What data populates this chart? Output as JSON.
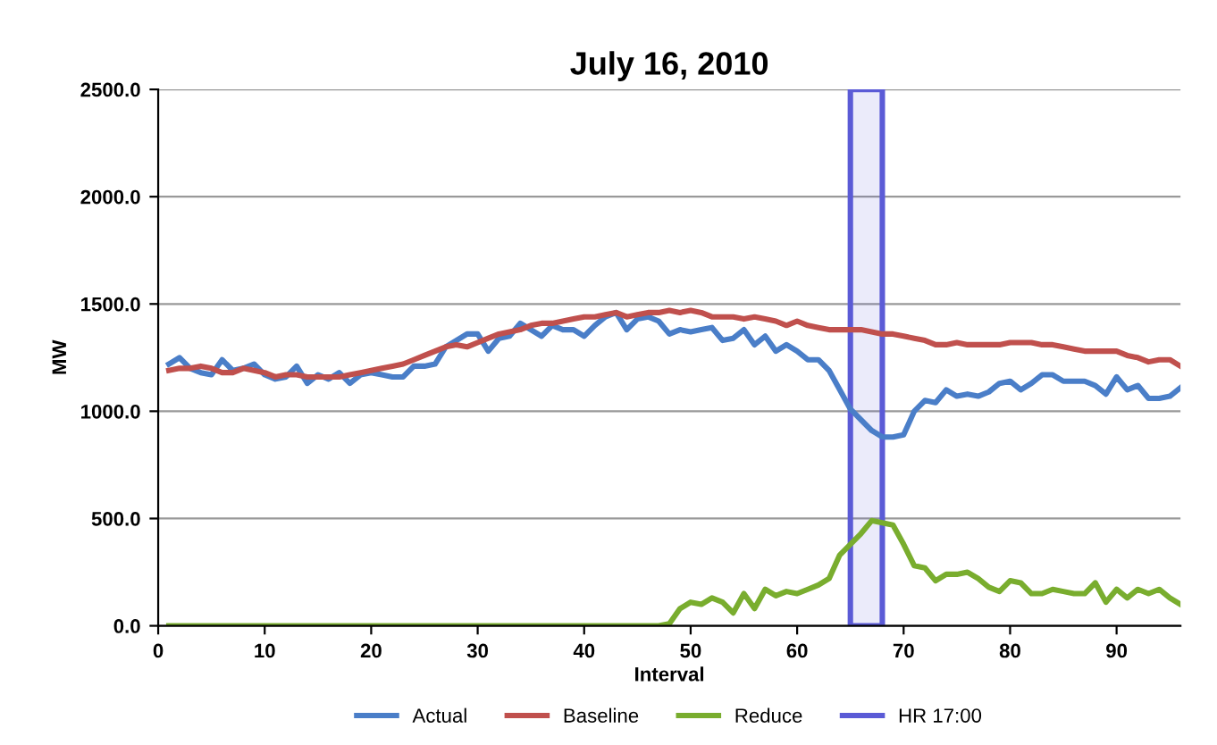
{
  "chart_data": {
    "type": "line",
    "title": "July 16, 2010",
    "xlabel": "Interval",
    "ylabel": "MW",
    "x": [
      1,
      2,
      3,
      4,
      5,
      6,
      7,
      8,
      9,
      10,
      11,
      12,
      13,
      14,
      15,
      16,
      17,
      18,
      19,
      20,
      21,
      22,
      23,
      24,
      25,
      26,
      27,
      28,
      29,
      30,
      31,
      32,
      33,
      34,
      35,
      36,
      37,
      38,
      39,
      40,
      41,
      42,
      43,
      44,
      45,
      46,
      47,
      48,
      49,
      50,
      51,
      52,
      53,
      54,
      55,
      56,
      57,
      58,
      59,
      60,
      61,
      62,
      63,
      64,
      65,
      66,
      67,
      68,
      69,
      70,
      71,
      72,
      73,
      74,
      75,
      76,
      77,
      78,
      79,
      80,
      81,
      82,
      83,
      84,
      85,
      86,
      87,
      88,
      89,
      90,
      91,
      92,
      93,
      94,
      95,
      96
    ],
    "series": [
      {
        "name": "Actual",
        "color": "#4a7ec8",
        "values": [
          1220,
          1250,
          1200,
          1180,
          1170,
          1240,
          1190,
          1200,
          1220,
          1170,
          1150,
          1160,
          1210,
          1130,
          1170,
          1150,
          1180,
          1130,
          1170,
          1180,
          1170,
          1160,
          1160,
          1210,
          1210,
          1220,
          1300,
          1330,
          1360,
          1360,
          1280,
          1340,
          1350,
          1410,
          1380,
          1350,
          1400,
          1380,
          1380,
          1350,
          1400,
          1440,
          1460,
          1380,
          1430,
          1440,
          1420,
          1360,
          1380,
          1370,
          1380,
          1390,
          1330,
          1340,
          1380,
          1310,
          1350,
          1280,
          1310,
          1280,
          1240,
          1240,
          1190,
          1100,
          1010,
          960,
          910,
          880,
          880,
          890,
          1000,
          1050,
          1040,
          1100,
          1070,
          1080,
          1070,
          1090,
          1130,
          1140,
          1100,
          1130,
          1170,
          1170,
          1140,
          1140,
          1140,
          1120,
          1080,
          1160,
          1100,
          1120,
          1060,
          1060,
          1070,
          1110
        ]
      },
      {
        "name": "Baseline",
        "color": "#c0504d",
        "values": [
          1190,
          1200,
          1200,
          1210,
          1200,
          1180,
          1180,
          1200,
          1190,
          1180,
          1160,
          1170,
          1170,
          1160,
          1160,
          1160,
          1160,
          1170,
          1180,
          1190,
          1200,
          1210,
          1220,
          1240,
          1260,
          1280,
          1300,
          1310,
          1300,
          1320,
          1340,
          1360,
          1370,
          1380,
          1400,
          1410,
          1410,
          1420,
          1430,
          1440,
          1440,
          1450,
          1460,
          1440,
          1450,
          1460,
          1460,
          1470,
          1460,
          1470,
          1460,
          1440,
          1440,
          1440,
          1430,
          1440,
          1430,
          1420,
          1400,
          1420,
          1400,
          1390,
          1380,
          1380,
          1380,
          1380,
          1370,
          1360,
          1360,
          1350,
          1340,
          1330,
          1310,
          1310,
          1320,
          1310,
          1310,
          1310,
          1310,
          1320,
          1320,
          1320,
          1310,
          1310,
          1300,
          1290,
          1280,
          1280,
          1280,
          1280,
          1260,
          1250,
          1230,
          1240,
          1240,
          1210
        ]
      },
      {
        "name": "Reduce",
        "color": "#79ad2e",
        "values": [
          0,
          0,
          0,
          0,
          0,
          0,
          0,
          0,
          0,
          0,
          0,
          0,
          0,
          0,
          0,
          0,
          0,
          0,
          0,
          0,
          0,
          0,
          0,
          0,
          0,
          0,
          0,
          0,
          0,
          0,
          0,
          0,
          0,
          0,
          0,
          0,
          0,
          0,
          0,
          0,
          0,
          0,
          0,
          0,
          0,
          0,
          0,
          10,
          80,
          110,
          100,
          130,
          110,
          60,
          150,
          80,
          170,
          140,
          160,
          150,
          170,
          190,
          220,
          330,
          380,
          430,
          490,
          480,
          470,
          380,
          280,
          270,
          210,
          240,
          240,
          250,
          220,
          180,
          160,
          210,
          200,
          150,
          150,
          170,
          160,
          150,
          150,
          200,
          110,
          170,
          130,
          170,
          150,
          170,
          130,
          100
        ]
      }
    ],
    "bands": [
      {
        "axis": "x",
        "from": 65,
        "to": 68,
        "label": "HR 17:00",
        "color": "#5b5bd6"
      }
    ],
    "xlim": [
      0,
      96
    ],
    "xticks": [
      0,
      10,
      20,
      30,
      40,
      50,
      60,
      70,
      80,
      90
    ],
    "ylim": [
      0,
      2500
    ],
    "yticks": [
      {
        "value": 0,
        "label": "0.0"
      },
      {
        "value": 500,
        "label": "500.0"
      },
      {
        "value": 1000,
        "label": "1000.0"
      },
      {
        "value": 1500,
        "label": "1500.0"
      },
      {
        "value": 2000,
        "label": "2000.0"
      },
      {
        "value": 2500,
        "label": "2500.0"
      }
    ],
    "grid": "y",
    "legend": "bottom",
    "marker": "none",
    "line_style": "solid"
  }
}
